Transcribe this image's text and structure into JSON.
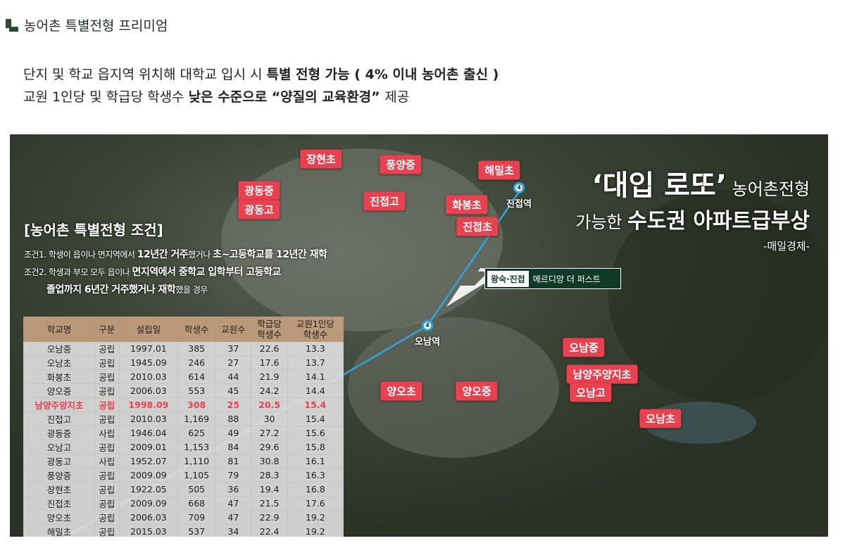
{
  "header": {
    "title": "농어촌 특별전형 프리미엄"
  },
  "intro": {
    "line1_a": "단지 및 학교 읍지역 위치해 대학교 입시 시 ",
    "line1_b": "특별 전형 가능 ( 4% 이내 농어촌 출신 )",
    "line2_a": "교원 1인당 및 학급당 학생수  ",
    "line2_b": "낮은 수준으로 “양질의 교육환경” ",
    "line2_c": "제공"
  },
  "conditions": {
    "title": "[농어촌 특별전형 조건]",
    "c1_a": "조건1. 학생이 읍이나 면지역에서 ",
    "c1_b": "12년간 거주",
    "c1_c": "했거나 ",
    "c1_d": "초~고등학교를 12년간 재학",
    "c2_a": "조건2. 학생과 부모 모두 읍이나 ",
    "c2_b": "면지역에서 중학교 입학부터 고등학교",
    "c3_a": "졸업까지 6년간 거주했거나 재학",
    "c3_b": "했을 경우"
  },
  "headline": {
    "quote": "‘대입 로또’",
    "l1_rest": " 농어촌전형",
    "l2_a": "가능한 ",
    "l2_b": "수도권 아파트급부상",
    "source": "-매일경제-"
  },
  "callout": {
    "tag": "왕숙·진접",
    "name": "메르디앙 더 퍼스트"
  },
  "stations": [
    {
      "line": "4",
      "name": "진접역"
    },
    {
      "line": "4",
      "name": "오남역"
    }
  ],
  "map_labels": [
    "장현초",
    "풍양중",
    "해밀초",
    "광동중",
    "광동고",
    "진접고",
    "화봉초",
    "진접초",
    "오남중",
    "남양주양지초",
    "오남고",
    "양오초",
    "양오중",
    "오남초"
  ],
  "colors": {
    "label": "#e8414f",
    "brand": "#2d4a33",
    "line4": "#2aa6e0"
  },
  "table": {
    "headers": [
      "학교명",
      "구분",
      "설립일",
      "학생수",
      "교원수",
      "학급당\n학생수",
      "교원1인당\n학생수"
    ],
    "highlight_row": 4,
    "rows": [
      [
        "오남중",
        "공립",
        "1997.01",
        "385",
        "37",
        "22.6",
        "13.3"
      ],
      [
        "오남초",
        "공립",
        "1945.09",
        "246",
        "27",
        "17.6",
        "13.7"
      ],
      [
        "화봉초",
        "공립",
        "2010.03",
        "614",
        "44",
        "21.9",
        "14.1"
      ],
      [
        "양오중",
        "공립",
        "2006.03",
        "553",
        "45",
        "24.2",
        "14.4"
      ],
      [
        "남양주양지초",
        "공립",
        "1998.09",
        "308",
        "25",
        "20.5",
        "15.4"
      ],
      [
        "진접고",
        "공립",
        "2010.03",
        "1,169",
        "88",
        "30",
        "15.4"
      ],
      [
        "광동중",
        "사립",
        "1946.04",
        "625",
        "49",
        "27.2",
        "15.6"
      ],
      [
        "오남고",
        "공립",
        "2009.01",
        "1,153",
        "84",
        "29.6",
        "15.8"
      ],
      [
        "광동고",
        "사립",
        "1952.07",
        "1,110",
        "81",
        "30.8",
        "16.1"
      ],
      [
        "풍양중",
        "공립",
        "2009.09",
        "1,105",
        "79",
        "28.3",
        "16.3"
      ],
      [
        "장현초",
        "공립",
        "1922.05",
        "505",
        "36",
        "19.4",
        "16.8"
      ],
      [
        "진접초",
        "공립",
        "2009.09",
        "668",
        "47",
        "21.5",
        "17.6"
      ],
      [
        "양오초",
        "공립",
        "2006.03",
        "709",
        "47",
        "22.9",
        "19.2"
      ],
      [
        "해밀초",
        "공립",
        "2015.03",
        "537",
        "34",
        "22.4",
        "19.2"
      ]
    ]
  }
}
